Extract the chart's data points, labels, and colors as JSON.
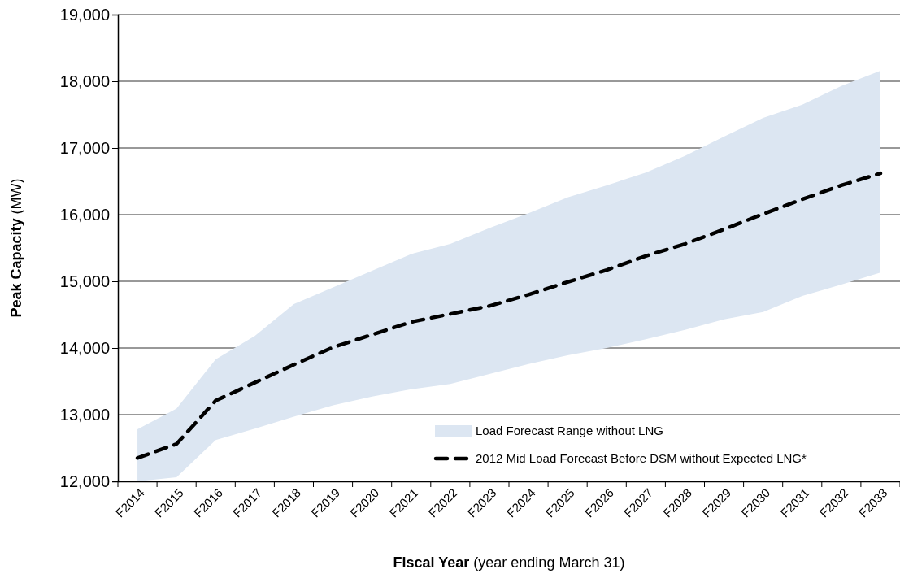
{
  "chart_data": {
    "type": "line",
    "xlabel": "Fiscal Year (year ending March 31)",
    "ylabel": "Peak Capacity (MW)",
    "categories": [
      "F2014",
      "F2015",
      "F2016",
      "F2017",
      "F2018",
      "F2019",
      "F2020",
      "F2021",
      "F2022",
      "F2023",
      "F2024",
      "F2025",
      "F2026",
      "F2027",
      "F2028",
      "F2029",
      "F2030",
      "F2031",
      "F2032",
      "F2033"
    ],
    "series": [
      {
        "name": "2012 Mid Load Forecast Before DSM without Expected LNG*",
        "color": "#000000",
        "line_style": "dashed",
        "values": [
          12350,
          12560,
          13210,
          13480,
          13750,
          14010,
          14200,
          14390,
          14510,
          14630,
          14800,
          14990,
          15170,
          15380,
          15560,
          15780,
          16010,
          16230,
          16440,
          16620
        ],
        "lower": [
          12000,
          12060,
          12620,
          12790,
          12970,
          13140,
          13270,
          13380,
          13460,
          13610,
          13760,
          13890,
          14000,
          14130,
          14270,
          14430,
          14540,
          14780,
          14950,
          15130
        ],
        "upper": [
          12780,
          13090,
          13830,
          14180,
          14660,
          14910,
          15160,
          15410,
          15560,
          15800,
          16020,
          16260,
          16440,
          16630,
          16880,
          17170,
          17450,
          17650,
          17930,
          18160
        ]
      }
    ],
    "annotations": [
      "Load Forecast Range without LNG"
    ],
    "ylim": [
      12000,
      19000
    ],
    "yticks": [
      {
        "value": 12000,
        "label": "12,000"
      },
      {
        "value": 13000,
        "label": "13,000"
      },
      {
        "value": 14000,
        "label": "14,000"
      },
      {
        "value": 15000,
        "label": "15,000"
      },
      {
        "value": 16000,
        "label": "16,000"
      },
      {
        "value": 17000,
        "label": "17,000"
      },
      {
        "value": 18000,
        "label": "18,000"
      },
      {
        "value": 19000,
        "label": "19,000"
      }
    ],
    "grid": "y",
    "legend": "bottom right"
  }
}
